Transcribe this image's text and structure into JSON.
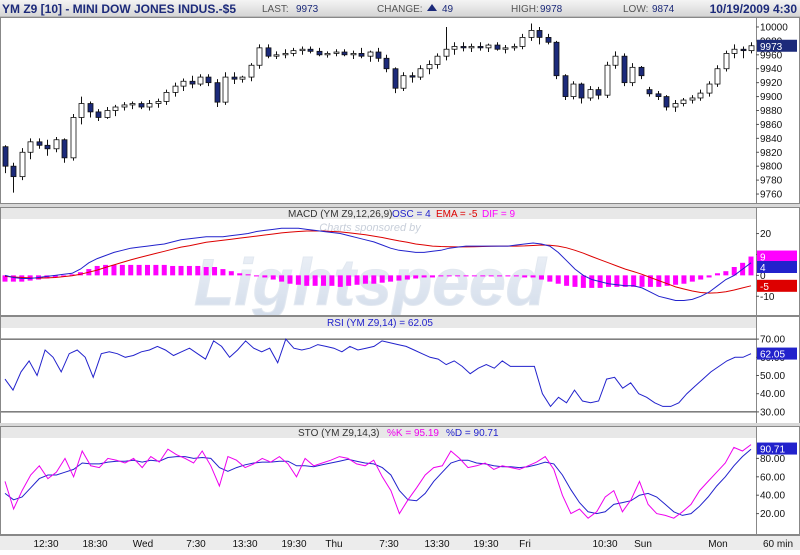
{
  "header": {
    "symbol": "YM Z9 [10] - MINI DOW JONES INDUS.-$5",
    "last_label": "LAST:",
    "last_value": "9973",
    "change_label": "CHANGE:",
    "change_value": "49",
    "high_label": "HIGH:",
    "high_value": "9978",
    "low_label": "LOW:",
    "low_value": "9874",
    "timestamp": "10/19/2009 4:30"
  },
  "watermark": {
    "sponsor_text": "Charts sponsored by",
    "brand_text": "Lightspeed"
  },
  "time_axis": {
    "labels": [
      "12:30",
      "18:30",
      "Wed",
      "7:30",
      "13:30",
      "19:30",
      "Thu",
      "7:30",
      "13:30",
      "19:30",
      "Fri",
      "10:30",
      "Sun",
      "Mon"
    ],
    "interval_label": "60 min"
  },
  "colors": {
    "candle_up": "#ffffff",
    "candle_down": "#1c2a7a",
    "macd_line": "#2222cc",
    "signal_line": "#dd0000",
    "histogram": "#ff00ff",
    "rsi_line": "#2222cc",
    "sto_k": "#ee00ee",
    "sto_d": "#2222cc",
    "accent": "#1c2a7a"
  },
  "chart_data": [
    {
      "type": "candlestick",
      "name": "price",
      "ylim": [
        9750,
        10010
      ],
      "yticks": [
        9760,
        9780,
        9800,
        9820,
        9840,
        9860,
        9880,
        9900,
        9920,
        9940,
        9960,
        9980,
        10000
      ],
      "last_label": "9973",
      "candles": [
        [
          9828,
          9830,
          9790,
          9800
        ],
        [
          9800,
          9805,
          9762,
          9785
        ],
        [
          9785,
          9826,
          9780,
          9820
        ],
        [
          9820,
          9840,
          9810,
          9835
        ],
        [
          9835,
          9840,
          9825,
          9830
        ],
        [
          9830,
          9838,
          9815,
          9825
        ],
        [
          9825,
          9842,
          9820,
          9838
        ],
        [
          9838,
          9840,
          9805,
          9812
        ],
        [
          9812,
          9875,
          9808,
          9870
        ],
        [
          9870,
          9900,
          9860,
          9890
        ],
        [
          9890,
          9893,
          9870,
          9878
        ],
        [
          9878,
          9882,
          9865,
          9870
        ],
        [
          9870,
          9885,
          9868,
          9880
        ],
        [
          9880,
          9888,
          9872,
          9885
        ],
        [
          9885,
          9892,
          9880,
          9888
        ],
        [
          9888,
          9893,
          9882,
          9890
        ],
        [
          9890,
          9893,
          9882,
          9885
        ],
        [
          9885,
          9895,
          9880,
          9890
        ],
        [
          9890,
          9897,
          9884,
          9893
        ],
        [
          9893,
          9910,
          9888,
          9906
        ],
        [
          9906,
          9920,
          9900,
          9915
        ],
        [
          9915,
          9926,
          9908,
          9922
        ],
        [
          9922,
          9930,
          9912,
          9918
        ],
        [
          9918,
          9932,
          9915,
          9928
        ],
        [
          9928,
          9932,
          9915,
          9920
        ],
        [
          9920,
          9925,
          9885,
          9892
        ],
        [
          9892,
          9935,
          9888,
          9928
        ],
        [
          9928,
          9935,
          9918,
          9925
        ],
        [
          9925,
          9930,
          9920,
          9928
        ],
        [
          9928,
          9948,
          9922,
          9945
        ],
        [
          9945,
          9975,
          9940,
          9970
        ],
        [
          9970,
          9975,
          9955,
          9958
        ],
        [
          9958,
          9965,
          9954,
          9960
        ],
        [
          9960,
          9968,
          9955,
          9962
        ],
        [
          9962,
          9970,
          9958,
          9966
        ],
        [
          9966,
          9972,
          9960,
          9968
        ],
        [
          9968,
          9972,
          9962,
          9965
        ],
        [
          9965,
          9970,
          9958,
          9960
        ],
        [
          9960,
          9965,
          9956,
          9962
        ],
        [
          9962,
          9968,
          9958,
          9964
        ],
        [
          9964,
          9968,
          9958,
          9960
        ],
        [
          9960,
          9966,
          9954,
          9962
        ],
        [
          9962,
          9970,
          9955,
          9958
        ],
        [
          9958,
          9966,
          9950,
          9964
        ],
        [
          9964,
          9970,
          9950,
          9955
        ],
        [
          9955,
          9960,
          9935,
          9940
        ],
        [
          9940,
          9942,
          9905,
          9912
        ],
        [
          9912,
          9935,
          9908,
          9930
        ],
        [
          9930,
          9935,
          9920,
          9928
        ],
        [
          9928,
          9945,
          9924,
          9940
        ],
        [
          9940,
          9952,
          9932,
          9946
        ],
        [
          9946,
          9962,
          9940,
          9958
        ],
        [
          9958,
          10000,
          9952,
          9968
        ],
        [
          9968,
          9978,
          9960,
          9972
        ],
        [
          9972,
          9978,
          9965,
          9970
        ],
        [
          9970,
          9976,
          9964,
          9972
        ],
        [
          9972,
          9978,
          9966,
          9970
        ],
        [
          9970,
          9976,
          9964,
          9974
        ],
        [
          9974,
          9978,
          9966,
          9968
        ],
        [
          9968,
          9974,
          9962,
          9970
        ],
        [
          9970,
          9976,
          9966,
          9972
        ],
        [
          9972,
          9990,
          9968,
          9985
        ],
        [
          9985,
          10005,
          9980,
          9995
        ],
        [
          9995,
          10000,
          9975,
          9985
        ],
        [
          9985,
          9990,
          9975,
          9978
        ],
        [
          9978,
          9980,
          9925,
          9930
        ],
        [
          9930,
          9932,
          9895,
          9900
        ],
        [
          9900,
          9922,
          9896,
          9918
        ],
        [
          9918,
          9920,
          9890,
          9898
        ],
        [
          9898,
          9915,
          9894,
          9910
        ],
        [
          9910,
          9914,
          9896,
          9902
        ],
        [
          9902,
          9950,
          9898,
          9945
        ],
        [
          9945,
          9965,
          9940,
          9958
        ],
        [
          9958,
          9962,
          9915,
          9920
        ],
        [
          9920,
          9948,
          9915,
          9942
        ],
        [
          9942,
          9944,
          9925,
          9930
        ],
        [
          9910,
          9914,
          9900,
          9904
        ],
        [
          9904,
          9908,
          9895,
          9900
        ],
        [
          9900,
          9902,
          9880,
          9885
        ],
        [
          9885,
          9895,
          9878,
          9890
        ],
        [
          9890,
          9898,
          9886,
          9895
        ],
        [
          9895,
          9902,
          9890,
          9898
        ],
        [
          9898,
          9910,
          9894,
          9905
        ],
        [
          9905,
          9922,
          9900,
          9918
        ],
        [
          9918,
          9945,
          9914,
          9940
        ],
        [
          9940,
          9966,
          9936,
          9962
        ],
        [
          9962,
          9975,
          9955,
          9968
        ],
        [
          9968,
          9972,
          9955,
          9966
        ],
        [
          9966,
          9978,
          9962,
          9973
        ]
      ]
    },
    {
      "type": "histogram+line",
      "name": "macd",
      "title": "MACD (YM Z9,12,26,9)",
      "legend": [
        {
          "label": "OSC = 4",
          "color": "#2222cc"
        },
        {
          "label": "EMA = -5",
          "color": "#dd0000"
        },
        {
          "label": "DIF = 9",
          "color": "#ff00ff"
        }
      ],
      "ylim": [
        -18,
        26
      ],
      "yticks": [
        -10,
        0,
        10,
        20
      ],
      "badges": [
        {
          "value": 9,
          "label": "9",
          "color": "#ff00ff"
        },
        {
          "value": 4,
          "label": "4",
          "color": "#2222cc"
        },
        {
          "value": -5,
          "label": "-5",
          "color": "#dd0000"
        }
      ],
      "macd": [
        0,
        -1,
        -1.5,
        -1.5,
        -1,
        -0.5,
        0,
        0.5,
        1,
        3,
        6,
        8,
        9.5,
        11,
        12,
        13,
        13.5,
        14,
        14.5,
        15,
        16,
        17,
        17.5,
        18,
        18.5,
        18.5,
        18.5,
        19,
        19.5,
        20,
        21,
        21.5,
        22,
        22.5,
        22.5,
        22.5,
        22,
        21.5,
        21,
        20.5,
        20,
        19,
        18,
        17,
        16,
        14.5,
        13,
        12,
        11.5,
        11,
        11,
        11.5,
        12,
        13,
        13.5,
        14,
        14,
        14,
        14,
        14,
        14,
        14.5,
        15,
        15.5,
        15,
        14,
        11,
        7,
        3,
        0,
        -2,
        -3,
        -4,
        -4.5,
        -5,
        -5,
        -6,
        -8,
        -10,
        -11,
        -12,
        -12,
        -11.5,
        -10,
        -8,
        -5,
        -2,
        0,
        3,
        6
      ],
      "signal": [
        -0.5,
        -0.8,
        -1,
        -1.2,
        -1.3,
        -1.2,
        -1,
        -0.6,
        -0.2,
        0.5,
        1.5,
        2.5,
        3.8,
        5,
        6.2,
        7.4,
        8.5,
        9.5,
        10.5,
        11.5,
        12.5,
        13.5,
        14.2,
        15,
        15.8,
        16.3,
        16.8,
        17.3,
        17.8,
        18.3,
        18.8,
        19.3,
        19.8,
        20.3,
        20.7,
        21,
        21.2,
        21.2,
        21.2,
        21,
        20.8,
        20.4,
        19.9,
        19.4,
        18.8,
        18.1,
        17.3,
        16.5,
        15.8,
        15,
        14.5,
        14,
        13.8,
        13.7,
        13.6,
        13.6,
        13.7,
        13.8,
        13.9,
        14,
        14,
        14,
        14.1,
        14.3,
        14.5,
        14.4,
        14,
        13.2,
        12,
        10.6,
        9,
        7.5,
        6,
        4.5,
        3,
        1.8,
        0.5,
        -1,
        -2.5,
        -4,
        -5.5,
        -6.5,
        -7.5,
        -8.2,
        -8.5,
        -8.3,
        -7.8,
        -7,
        -6,
        -5
      ],
      "histogram": [
        -3,
        -3,
        -3,
        -2.5,
        -2,
        -1.5,
        -1,
        -0.5,
        0.5,
        1.5,
        3,
        4.5,
        5,
        5,
        5,
        5,
        5,
        5,
        5,
        5,
        4.5,
        4.5,
        4.5,
        4.5,
        4,
        4,
        3,
        2,
        1,
        0.5,
        -0.5,
        -1,
        -2,
        -3,
        -4,
        -4.5,
        -5,
        -5,
        -5,
        -5,
        -5.5,
        -5,
        -4.5,
        -4,
        -4,
        -3.5,
        -3,
        -2.5,
        -2,
        -1.5,
        -1,
        -1,
        -0.5,
        0,
        0,
        0,
        0,
        -0.5,
        -0.5,
        -0.5,
        -0.5,
        -0.5,
        -1,
        -1,
        -2,
        -3,
        -4,
        -5,
        -5.5,
        -6,
        -6,
        -6,
        -5.5,
        -5.5,
        -5.5,
        -5.5,
        -5.5,
        -5.5,
        -5.5,
        -5,
        -4.5,
        -4,
        -3,
        -2,
        -1,
        1,
        2,
        4,
        6,
        9
      ]
    },
    {
      "type": "line",
      "name": "rsi",
      "title": "RSI (YM Z9,14) = 62.05",
      "color": "#2222cc",
      "ylim": [
        25,
        75
      ],
      "yticks": [
        30,
        40,
        50,
        60,
        70
      ],
      "reference_lines": [
        30,
        70
      ],
      "badge": {
        "value": 62.05,
        "label": "62.05"
      },
      "values": [
        48,
        42,
        52,
        58,
        50,
        64,
        60,
        52,
        62,
        64,
        60,
        49,
        62,
        63,
        62,
        60,
        61,
        63,
        64,
        66,
        64,
        61,
        63,
        65,
        62,
        59,
        69,
        66,
        60,
        64,
        69,
        65,
        63,
        65,
        57,
        70,
        65,
        64,
        65,
        67,
        66,
        65,
        63,
        66,
        64,
        65,
        66,
        69,
        68,
        67,
        66,
        64,
        62,
        60,
        59,
        56,
        58,
        55,
        51,
        54,
        56,
        54,
        58,
        55,
        55,
        55,
        55,
        40,
        33,
        38,
        35,
        42,
        36,
        35,
        36,
        48,
        49,
        43,
        46,
        40,
        38,
        35,
        33,
        33,
        35,
        40,
        44,
        48,
        52,
        55,
        58,
        60,
        60,
        62
      ]
    },
    {
      "type": "line",
      "name": "stochastic",
      "title": "STO (YM Z9,14,3)",
      "legend": [
        {
          "label": "%K = 95.19",
          "color": "#ee00ee"
        },
        {
          "label": "%D = 90.71",
          "color": "#2222cc"
        }
      ],
      "ylim": [
        0,
        100
      ],
      "yticks": [
        20,
        40,
        60,
        80
      ],
      "badge": {
        "value": 90.71,
        "label": "90.71"
      },
      "k": [
        55,
        25,
        45,
        62,
        72,
        58,
        65,
        80,
        60,
        88,
        72,
        70,
        80,
        78,
        75,
        80,
        70,
        82,
        76,
        90,
        84,
        80,
        75,
        88,
        72,
        50,
        82,
        78,
        70,
        74,
        80,
        76,
        82,
        74,
        60,
        80,
        72,
        75,
        78,
        82,
        80,
        74,
        72,
        78,
        60,
        45,
        20,
        35,
        48,
        62,
        70,
        72,
        88,
        80,
        70,
        72,
        75,
        68,
        72,
        70,
        68,
        72,
        76,
        82,
        68,
        40,
        20,
        25,
        15,
        22,
        38,
        45,
        22,
        35,
        55,
        30,
        20,
        18,
        15,
        22,
        30,
        45,
        55,
        65,
        75,
        92,
        88,
        95
      ],
      "d": [
        42,
        35,
        38,
        48,
        58,
        62,
        62,
        65,
        68,
        75,
        74,
        74,
        76,
        77,
        77,
        78,
        76,
        78,
        77,
        81,
        82,
        82,
        80,
        81,
        80,
        70,
        66,
        70,
        73,
        75,
        76,
        76,
        77,
        77,
        72,
        72,
        71,
        73,
        75,
        77,
        79,
        77,
        75,
        74,
        70,
        62,
        45,
        35,
        34,
        42,
        55,
        65,
        75,
        78,
        78,
        75,
        74,
        72,
        71,
        71,
        70,
        71,
        73,
        76,
        74,
        62,
        46,
        32,
        22,
        20,
        22,
        30,
        32,
        34,
        40,
        42,
        38,
        30,
        22,
        18,
        20,
        28,
        38,
        50,
        60,
        72,
        82,
        90
      ]
    }
  ]
}
